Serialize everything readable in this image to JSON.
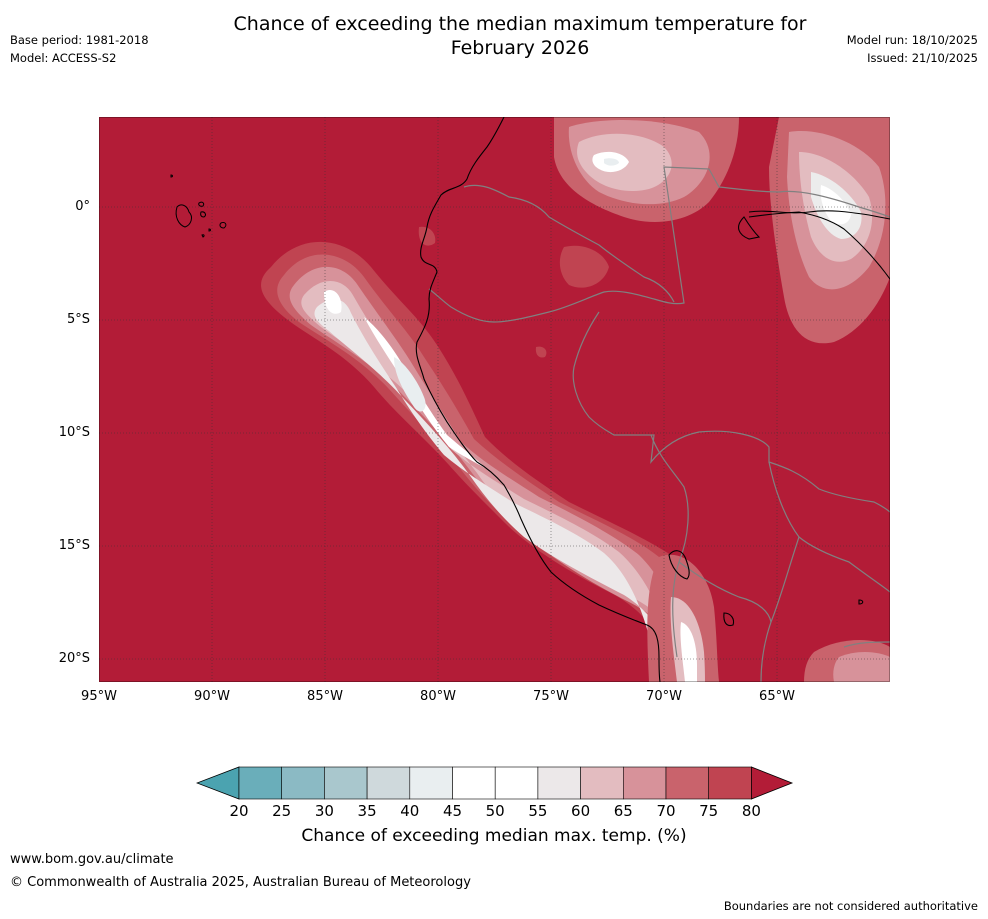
{
  "header": {
    "title_line1": "Chance of exceeding the median maximum temperature for",
    "title_line2": "February 2026",
    "base_period": "Base period: 1981-2018",
    "model": "Model: ACCESS-S2",
    "model_run": "Model run: 18/10/2025",
    "issued": "Issued: 21/10/2025"
  },
  "map": {
    "lat_labels": [
      "0°",
      "5°S",
      "10°S",
      "15°S",
      "20°S"
    ],
    "lon_labels": [
      "95°W",
      "90°W",
      "85°W",
      "80°W",
      "75°W",
      "70°W",
      "65°W"
    ],
    "background_category": "80+",
    "colors": {
      "c80_plus": "#b31c37",
      "c75_80": "#c04451",
      "c70_75": "#c9636c",
      "c65_70": "#d7929a",
      "c60_65": "#e3bcc0",
      "c55_60": "#ece8e9",
      "c50_55": "#ffffff",
      "c45_50": "#ffffff",
      "c40_45": "#e9eef0",
      "c35_40": "#cfd9dc",
      "c30_35": "#a9c7cd",
      "c25_30": "#8bbac4",
      "c20_25": "#6aaeba",
      "c_below20": "#4ba3b0"
    }
  },
  "colorbar": {
    "ticks": [
      "20",
      "25",
      "30",
      "35",
      "40",
      "45",
      "50",
      "55",
      "60",
      "65",
      "70",
      "75",
      "80"
    ],
    "label": "Chance of exceeding median max. temp. (%)"
  },
  "footer": {
    "website": "www.bom.gov.au/climate",
    "copyright": "© Commonwealth of Australia 2025, Australian Bureau of Meteorology",
    "disclaimer": "Boundaries are not considered authoritative"
  }
}
